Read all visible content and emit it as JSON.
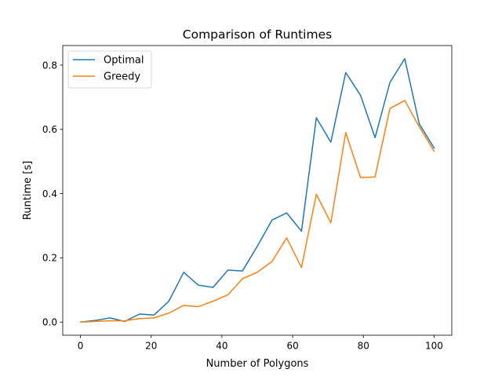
{
  "chart_data": {
    "type": "line",
    "title": "Comparison of Runtimes",
    "xlabel": "Number of Polygons",
    "ylabel": "Runtime [s]",
    "xlim": [
      -5,
      105
    ],
    "ylim": [
      -0.041,
      0.861
    ],
    "xticks": [
      0,
      20,
      40,
      60,
      80,
      100
    ],
    "xtick_labels": [
      "0",
      "20",
      "40",
      "60",
      "80",
      "100"
    ],
    "yticks": [
      0.0,
      0.2,
      0.4,
      0.6,
      0.8
    ],
    "ytick_labels": [
      "0.0",
      "0.2",
      "0.4",
      "0.6",
      "0.8"
    ],
    "grid": false,
    "legend_position": "top-left",
    "x": [
      0,
      4.2,
      8.3,
      12.5,
      16.7,
      20.8,
      25,
      29.2,
      33.3,
      37.5,
      41.7,
      45.8,
      50,
      54.2,
      58.3,
      62.5,
      66.7,
      70.8,
      75,
      79.2,
      83.3,
      87.5,
      91.7,
      95.8,
      100
    ],
    "series": [
      {
        "name": "Optimal",
        "color": "#1f77b4",
        "values": [
          0.0,
          0.005,
          0.013,
          0.002,
          0.025,
          0.022,
          0.065,
          0.155,
          0.115,
          0.108,
          0.162,
          0.159,
          0.236,
          0.318,
          0.34,
          0.283,
          0.636,
          0.56,
          0.777,
          0.706,
          0.574,
          0.746,
          0.82,
          0.617,
          0.542
        ]
      },
      {
        "name": "Greedy",
        "color": "#ff7f0e",
        "values": [
          0.0,
          0.002,
          0.004,
          0.004,
          0.011,
          0.013,
          0.028,
          0.052,
          0.048,
          0.065,
          0.085,
          0.135,
          0.155,
          0.189,
          0.262,
          0.17,
          0.398,
          0.309,
          0.59,
          0.45,
          0.452,
          0.665,
          0.69,
          0.608,
          0.532
        ]
      }
    ]
  }
}
